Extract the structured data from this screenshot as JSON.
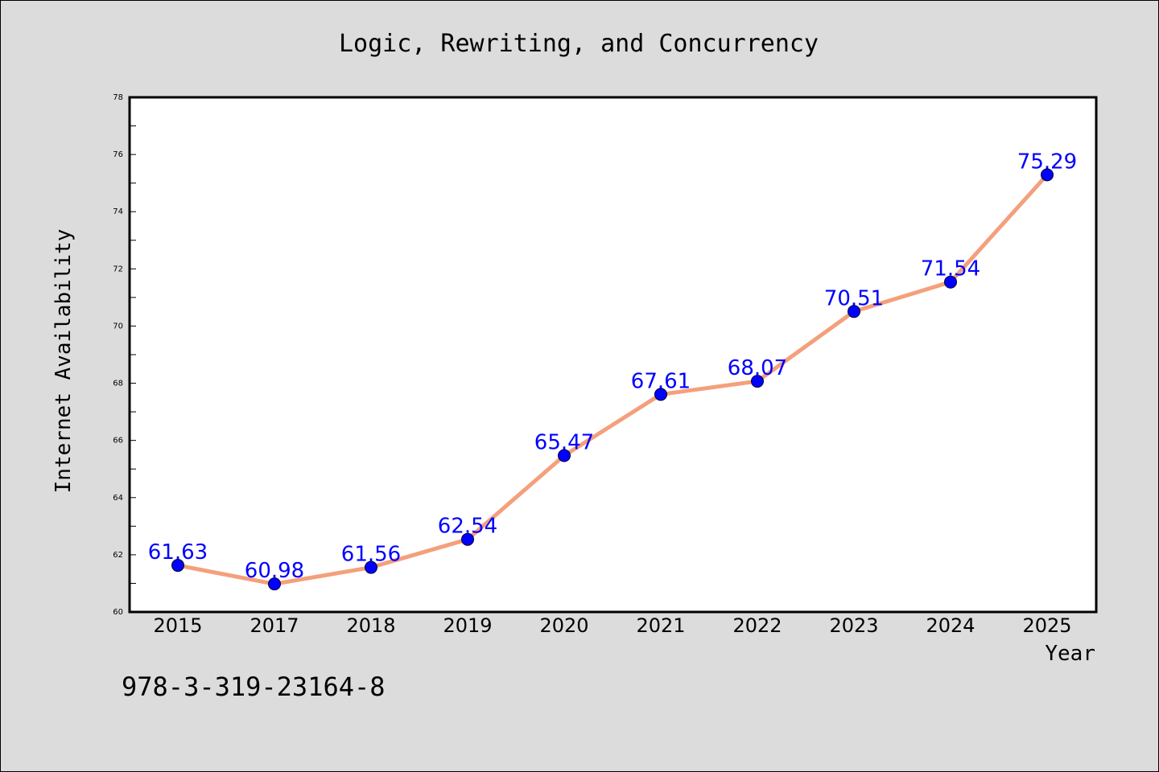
{
  "chart_data": {
    "type": "line",
    "title": "Logic, Rewriting, and Concurrency",
    "xlabel": "Year",
    "ylabel": "Internet Availability",
    "categories": [
      "2015",
      "2017",
      "2018",
      "2019",
      "2020",
      "2021",
      "2022",
      "2023",
      "2024",
      "2025"
    ],
    "series": [
      {
        "values": [
          61.63,
          60.98,
          61.56,
          62.54,
          65.47,
          67.61,
          68.07,
          70.51,
          71.54,
          75.29
        ],
        "data_labels": [
          "61.63",
          "60.98",
          "61.56",
          "62.54",
          "65.47",
          "67.61",
          "68.07",
          "70.51",
          "71.54",
          "75.29"
        ],
        "line_color": "#f4a07c",
        "marker_color": "#0000ff"
      }
    ],
    "ylim": [
      60,
      78
    ],
    "yticks": [
      "60",
      "62",
      "64",
      "66",
      "68",
      "70",
      "72",
      "74",
      "76",
      "78"
    ],
    "grid": false,
    "legend": "none"
  },
  "footer": {
    "isbn": "978-3-319-23164-8"
  },
  "colors": {
    "background": "#dcdcdc",
    "plot_background": "#ffffff",
    "line": "#f4a07c",
    "marker": "#0000ff",
    "data_label": "#0000ff"
  }
}
